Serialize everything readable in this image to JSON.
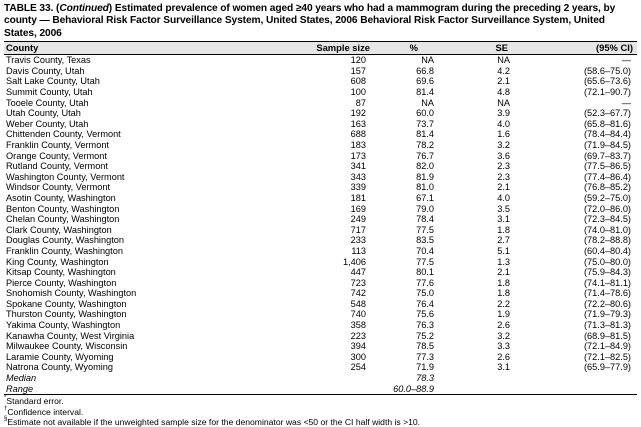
{
  "title": {
    "prefix": "TABLE 33. (",
    "continued": "Continued",
    "rest": ") Estimated prevalence of women aged ≥40 years who had a mammogram during the preceding 2 years, by county — Behavioral Risk Factor Surveillance System, United States, 2006 Behavioral Risk Factor Surveillance System, United States, 2006"
  },
  "columns": {
    "county": "County",
    "sample_size": "Sample size",
    "percent": "%",
    "se": "SE",
    "ci": "(95% CI)"
  },
  "rows": [
    {
      "county": "Travis County, Texas",
      "n": "120",
      "pct": "NA",
      "se": "NA",
      "ci": "—"
    },
    {
      "county": "Davis County, Utah",
      "n": "157",
      "pct": "66.8",
      "se": "4.2",
      "ci": "(58.6–75.0)"
    },
    {
      "county": "Salt Lake County, Utah",
      "n": "608",
      "pct": "69.6",
      "se": "2.1",
      "ci": "(65.6–73.6)"
    },
    {
      "county": "Summit County, Utah",
      "n": "100",
      "pct": "81.4",
      "se": "4.8",
      "ci": "(72.1–90.7)"
    },
    {
      "county": "Tooele County, Utah",
      "n": "87",
      "pct": "NA",
      "se": "NA",
      "ci": "—"
    },
    {
      "county": "Utah County, Utah",
      "n": "192",
      "pct": "60.0",
      "se": "3.9",
      "ci": "(52.3–67.7)"
    },
    {
      "county": "Weber County, Utah",
      "n": "163",
      "pct": "73.7",
      "se": "4.0",
      "ci": "(65.8–81.6)"
    },
    {
      "county": "Chittenden County, Vermont",
      "n": "688",
      "pct": "81.4",
      "se": "1.6",
      "ci": "(78.4–84.4)"
    },
    {
      "county": "Franklin County, Vermont",
      "n": "183",
      "pct": "78.2",
      "se": "3.2",
      "ci": "(71.9–84.5)"
    },
    {
      "county": "Orange County, Vermont",
      "n": "173",
      "pct": "76.7",
      "se": "3.6",
      "ci": "(69.7–83.7)"
    },
    {
      "county": "Rutland County, Vermont",
      "n": "341",
      "pct": "82.0",
      "se": "2.3",
      "ci": "(77.5–86.5)"
    },
    {
      "county": "Washington County, Vermont",
      "n": "343",
      "pct": "81.9",
      "se": "2.3",
      "ci": "(77.4–86.4)"
    },
    {
      "county": "Windsor County, Vermont",
      "n": "339",
      "pct": "81.0",
      "se": "2.1",
      "ci": "(76.8–85.2)"
    },
    {
      "county": "Asotin County, Washington",
      "n": "181",
      "pct": "67.1",
      "se": "4.0",
      "ci": "(59.2–75.0)"
    },
    {
      "county": "Benton County, Washington",
      "n": "169",
      "pct": "79.0",
      "se": "3.5",
      "ci": "(72.0–86.0)"
    },
    {
      "county": "Chelan County, Washington",
      "n": "249",
      "pct": "78.4",
      "se": "3.1",
      "ci": "(72.3–84.5)"
    },
    {
      "county": "Clark County, Washington",
      "n": "717",
      "pct": "77.5",
      "se": "1.8",
      "ci": "(74.0–81.0)"
    },
    {
      "county": "Douglas County, Washington",
      "n": "233",
      "pct": "83.5",
      "se": "2.7",
      "ci": "(78.2–88.8)"
    },
    {
      "county": "Franklin County, Washington",
      "n": "113",
      "pct": "70.4",
      "se": "5.1",
      "ci": "(60.4–80.4)"
    },
    {
      "county": "King County, Washington",
      "n": "1,406",
      "pct": "77.5",
      "se": "1.3",
      "ci": "(75.0–80.0)"
    },
    {
      "county": "Kitsap County, Washington",
      "n": "447",
      "pct": "80.1",
      "se": "2.1",
      "ci": "(75.9–84.3)"
    },
    {
      "county": "Pierce County, Washington",
      "n": "723",
      "pct": "77.6",
      "se": "1.8",
      "ci": "(74.1–81.1)"
    },
    {
      "county": "Snohomish County, Washington",
      "n": "742",
      "pct": "75.0",
      "se": "1.8",
      "ci": "(71.4–78.6)"
    },
    {
      "county": "Spokane County, Washington",
      "n": "548",
      "pct": "76.4",
      "se": "2.2",
      "ci": "(72.2–80.6)"
    },
    {
      "county": "Thurston County, Washington",
      "n": "740",
      "pct": "75.6",
      "se": "1.9",
      "ci": "(71.9–79.3)"
    },
    {
      "county": "Yakima County, Washington",
      "n": "358",
      "pct": "76.3",
      "se": "2.6",
      "ci": "(71.3–81.3)"
    },
    {
      "county": "Kanawha County, West Virginia",
      "n": "223",
      "pct": "75.2",
      "se": "3.2",
      "ci": "(68.9–81.5)"
    },
    {
      "county": "Milwaukee County, Wisconsin",
      "n": "394",
      "pct": "78.5",
      "se": "3.3",
      "ci": "(72.1–84.9)"
    },
    {
      "county": "Laramie County, Wyoming",
      "n": "300",
      "pct": "77.3",
      "se": "2.6",
      "ci": "(72.1–82.5)"
    },
    {
      "county": "Natrona County, Wyoming",
      "n": "254",
      "pct": "71.9",
      "se": "3.1",
      "ci": "(65.9–77.9)"
    }
  ],
  "summary": {
    "median_label": "Median",
    "median_value": "78.3",
    "range_label": "Range",
    "range_value": "60.0–88.9"
  },
  "footnotes": [
    {
      "mark": "*",
      "text": "Standard error."
    },
    {
      "mark": "†",
      "text": "Confidence interval."
    },
    {
      "mark": "§",
      "text": "Estimate not available if the unweighted sample size for the denominator was <50 or the CI half width is >10."
    }
  ]
}
